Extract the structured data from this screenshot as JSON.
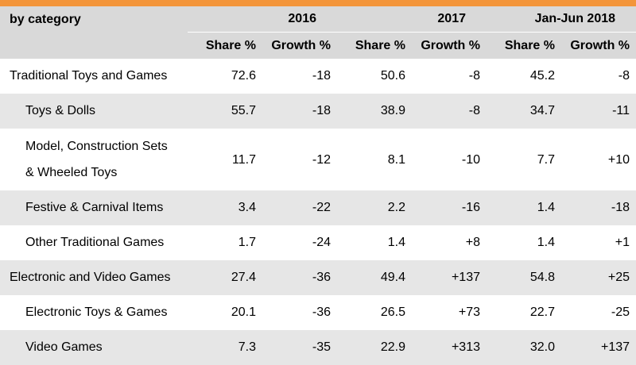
{
  "header": {
    "category_label": "by category",
    "periods": [
      "2016",
      "2017",
      "Jan-Jun 2018"
    ],
    "share_label": "Share %",
    "growth_label": "Growth %"
  },
  "rows": [
    {
      "label": "Traditional Toys and Games",
      "values": [
        "72.6",
        "-18",
        "50.6",
        "-8",
        "45.2",
        "-8"
      ]
    },
    {
      "label": "Toys & Dolls",
      "values": [
        "55.7",
        "-18",
        "38.9",
        "-8",
        "34.7",
        "-11"
      ]
    },
    {
      "label_line1": "Model, Construction Sets",
      "label_line2": "& Wheeled Toys",
      "values": [
        "11.7",
        "-12",
        "8.1",
        "-10",
        "7.7",
        "+10"
      ]
    },
    {
      "label": "Festive & Carnival Items",
      "values": [
        "3.4",
        "-22",
        "2.2",
        "-16",
        "1.4",
        "-18"
      ]
    },
    {
      "label": "Other Traditional Games",
      "values": [
        "1.7",
        "-24",
        "1.4",
        "+8",
        "1.4",
        "+1"
      ]
    },
    {
      "label": "Electronic and Video Games",
      "values": [
        "27.4",
        "-36",
        "49.4",
        "+137",
        "54.8",
        "+25"
      ]
    },
    {
      "label": "Electronic Toys & Games",
      "values": [
        "20.1",
        "-36",
        "26.5",
        "+73",
        "22.7",
        "-25"
      ]
    },
    {
      "label": "Video Games",
      "values": [
        "7.3",
        "-35",
        "22.9",
        "+313",
        "32.0",
        "+137"
      ]
    }
  ],
  "colors": {
    "accent": "#f3953a",
    "header_bg": "#d9d9d9",
    "stripe_bg": "#e6e6e6"
  }
}
